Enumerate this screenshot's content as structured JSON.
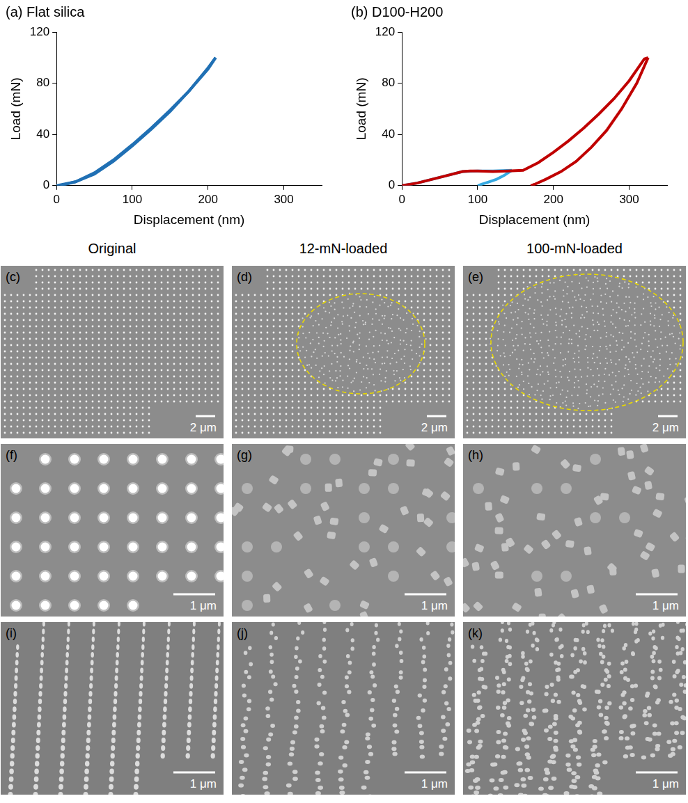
{
  "chart_data": [
    {
      "type": "line",
      "title": "(a) Flat silica",
      "x_label": "Displacement (nm)",
      "y_label": "Load (mN)",
      "xlim": [
        0,
        350
      ],
      "xticks": [
        0,
        100,
        200,
        300
      ],
      "ylim": [
        0,
        120
      ],
      "yticks": [
        0,
        40,
        80,
        120
      ],
      "grid": false,
      "series": [
        {
          "color": "#2070b4",
          "line_style": "solid",
          "x": [
            0,
            25,
            50,
            75,
            100,
            125,
            150,
            175,
            200,
            210
          ],
          "values": [
            0,
            3,
            10,
            20,
            32,
            45,
            59,
            74,
            91,
            100
          ]
        },
        {
          "color": "#2070b4",
          "line_style": "solid",
          "x": [
            210,
            200,
            175,
            150,
            125,
            100,
            75,
            50,
            25,
            5
          ],
          "values": [
            100,
            92,
            74,
            58,
            44,
            31,
            19,
            9,
            3,
            0
          ]
        }
      ]
    },
    {
      "type": "line",
      "title": "(b) D100-H200",
      "x_label": "Displacement (nm)",
      "y_label": "Load (mN)",
      "xlim": [
        0,
        350
      ],
      "xticks": [
        0,
        100,
        200,
        300
      ],
      "ylim": [
        0,
        120
      ],
      "yticks": [
        0,
        40,
        80,
        120
      ],
      "grid": false,
      "series": [
        {
          "color": "#c00000",
          "line_style": "solid",
          "x": [
            0,
            20,
            40,
            60,
            80,
            90,
            100,
            120,
            140,
            160,
            180,
            200,
            220,
            240,
            260,
            280,
            300,
            320,
            325
          ],
          "values": [
            0,
            2,
            5,
            8,
            11,
            11.5,
            11.5,
            11,
            11.5,
            12,
            18,
            26,
            35,
            45,
            56,
            68,
            82,
            99,
            100
          ]
        },
        {
          "color": "#c00000",
          "line_style": "solid",
          "x": [
            325,
            310,
            290,
            270,
            250,
            230,
            210,
            190,
            175,
            170
          ],
          "values": [
            100,
            80,
            60,
            43,
            30,
            19,
            11,
            5,
            1,
            0
          ]
        },
        {
          "color": "#36a9e1",
          "line_style": "solid",
          "x": [
            0,
            20,
            40,
            60,
            80,
            100,
            120,
            145
          ],
          "values": [
            0,
            2,
            5,
            8,
            11,
            11.5,
            11.5,
            12
          ]
        },
        {
          "color": "#36a9e1",
          "line_style": "solid",
          "x": [
            145,
            135,
            125,
            115,
            105,
            100
          ],
          "values": [
            12,
            8,
            5,
            3,
            1,
            0
          ]
        }
      ]
    }
  ],
  "micrographs": {
    "columns": [
      "Original",
      "12-mN-loaded",
      "100-mN-loaded"
    ],
    "rows": [
      [
        {
          "label": "(c)",
          "scale_bar": "2 μm"
        },
        {
          "label": "(d)",
          "scale_bar": "2 μm"
        },
        {
          "label": "(e)",
          "scale_bar": "2 μm"
        }
      ],
      [
        {
          "label": "(f)",
          "scale_bar": "1 μm"
        },
        {
          "label": "(g)",
          "scale_bar": "1 μm"
        },
        {
          "label": "(h)",
          "scale_bar": "1 μm"
        }
      ],
      [
        {
          "label": "(i)",
          "scale_bar": "1 μm"
        },
        {
          "label": "(j)",
          "scale_bar": "1 μm"
        },
        {
          "label": "(k)",
          "scale_bar": "1 μm"
        }
      ]
    ]
  }
}
